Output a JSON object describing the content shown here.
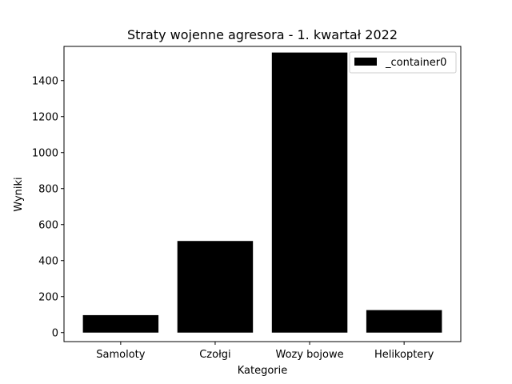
{
  "chart_data": {
    "type": "bar",
    "title": "Straty wojenne agresora - 1. kwartał 2022",
    "xlabel": "Kategorie",
    "ylabel": "Wyniki",
    "categories": [
      "Samoloty",
      "Czołgi",
      "Wozy bojowe",
      "Helikoptery"
    ],
    "series": [
      {
        "name": "_container0",
        "values": [
          97,
          509,
          1556,
          125
        ],
        "color": "#000000"
      }
    ],
    "ylim": [
      -50,
      1590
    ],
    "yticks": [
      0,
      200,
      400,
      600,
      800,
      1000,
      1200,
      1400
    ],
    "grid": false,
    "legend_position": "top-right"
  }
}
